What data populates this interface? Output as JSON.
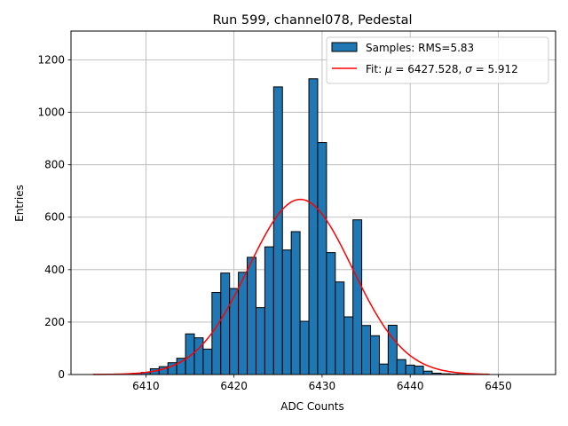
{
  "chart_data": {
    "type": "bar",
    "title": "Run 599, channel078, Pedestal",
    "xlabel": "ADC Counts",
    "ylabel": "Entries",
    "xlim": [
      6401.5,
      6456.5
    ],
    "ylim": [
      0,
      1310
    ],
    "grid": true,
    "legend_position": "top-right",
    "x_ticks": [
      6410,
      6420,
      6430,
      6440,
      6450
    ],
    "y_ticks": [
      0,
      200,
      400,
      600,
      800,
      1000,
      1200
    ],
    "histogram": {
      "name": "Samples: RMS=5.83",
      "bin_width": 1,
      "color": "#1f77b4",
      "edge_color": "#000000",
      "bins": [
        {
          "x": 6408,
          "value": 2
        },
        {
          "x": 6409,
          "value": 5
        },
        {
          "x": 6410,
          "value": 8
        },
        {
          "x": 6411,
          "value": 22
        },
        {
          "x": 6412,
          "value": 30
        },
        {
          "x": 6413,
          "value": 45
        },
        {
          "x": 6414,
          "value": 62
        },
        {
          "x": 6415,
          "value": 155
        },
        {
          "x": 6416,
          "value": 140
        },
        {
          "x": 6417,
          "value": 97
        },
        {
          "x": 6418,
          "value": 313
        },
        {
          "x": 6419,
          "value": 387
        },
        {
          "x": 6420,
          "value": 328
        },
        {
          "x": 6421,
          "value": 390
        },
        {
          "x": 6422,
          "value": 447
        },
        {
          "x": 6423,
          "value": 255
        },
        {
          "x": 6424,
          "value": 487
        },
        {
          "x": 6425,
          "value": 1097
        },
        {
          "x": 6426,
          "value": 475
        },
        {
          "x": 6427,
          "value": 545
        },
        {
          "x": 6428,
          "value": 203
        },
        {
          "x": 6429,
          "value": 1128
        },
        {
          "x": 6430,
          "value": 885
        },
        {
          "x": 6431,
          "value": 465
        },
        {
          "x": 6432,
          "value": 353
        },
        {
          "x": 6433,
          "value": 220
        },
        {
          "x": 6434,
          "value": 590
        },
        {
          "x": 6435,
          "value": 187
        },
        {
          "x": 6436,
          "value": 148
        },
        {
          "x": 6437,
          "value": 40
        },
        {
          "x": 6438,
          "value": 188
        },
        {
          "x": 6439,
          "value": 57
        },
        {
          "x": 6440,
          "value": 36
        },
        {
          "x": 6441,
          "value": 32
        },
        {
          "x": 6442,
          "value": 13
        },
        {
          "x": 6443,
          "value": 5
        },
        {
          "x": 6444,
          "value": 3
        },
        {
          "x": 6445,
          "value": 2
        },
        {
          "x": 6446,
          "value": 1
        }
      ]
    },
    "fit": {
      "name_prefix": "Fit: ",
      "mu_symbol": "μ",
      "mu_text": " = 6427.528, ",
      "sigma_symbol": "σ",
      "sigma_text": " = 5.912",
      "mu": 6427.528,
      "sigma": 5.912,
      "amplitude": 668,
      "x_range": [
        6404,
        6449
      ],
      "color": "#ff0000"
    }
  }
}
